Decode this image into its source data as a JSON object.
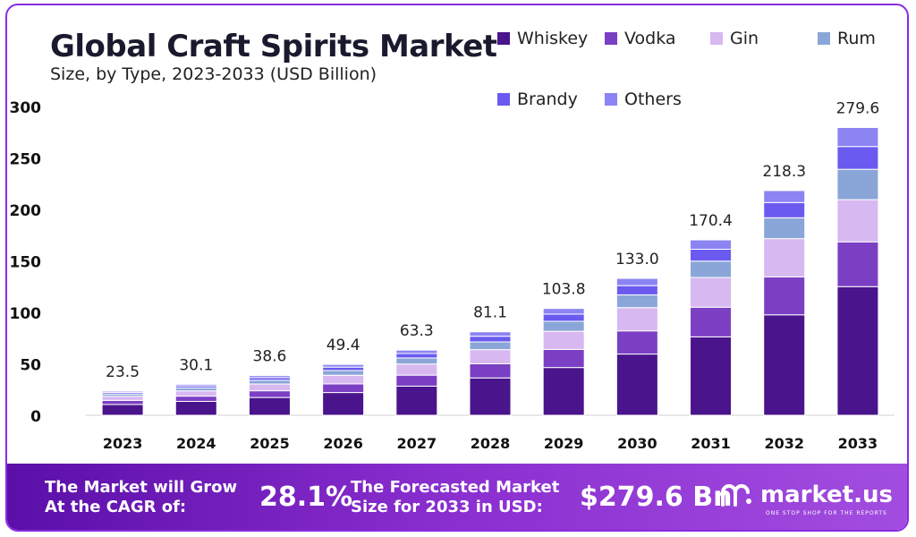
{
  "title": "Global Craft Spirits Market",
  "subtitle": "Size, by Type, 2023-2033 (USD Billion)",
  "colors": {
    "Whiskey": "#4a148c",
    "Vodka": "#7b3fc4",
    "Gin": "#d7b8f0",
    "Rum": "#8aa6d8",
    "Brandy": "#6a5af0",
    "Others": "#8c84f2"
  },
  "chart_data": {
    "type": "bar",
    "stacked": true,
    "categories": [
      "2023",
      "2024",
      "2025",
      "2026",
      "2027",
      "2028",
      "2029",
      "2030",
      "2031",
      "2032",
      "2033"
    ],
    "totals": [
      "23.5",
      "30.1",
      "38.6",
      "49.4",
      "63.3",
      "81.1",
      "103.8",
      "133.0",
      "170.4",
      "218.3",
      "279.6"
    ],
    "series": [
      {
        "name": "Whiskey",
        "values": [
          10.5,
          13.5,
          17.3,
          22.1,
          28.3,
          36.3,
          46.4,
          59.5,
          76.2,
          97.6,
          125.0
        ]
      },
      {
        "name": "Vodka",
        "values": [
          4.0,
          5.1,
          6.5,
          8.4,
          10.7,
          13.7,
          17.6,
          22.5,
          28.8,
          36.9,
          43.5
        ]
      },
      {
        "name": "Gin",
        "values": [
          4.0,
          5.1,
          6.6,
          8.4,
          10.8,
          13.8,
          17.6,
          22.6,
          28.9,
          37.1,
          41.0
        ]
      },
      {
        "name": "Rum",
        "values": [
          2.2,
          2.8,
          3.6,
          4.6,
          5.9,
          7.5,
          9.7,
          12.4,
          15.9,
          20.3,
          29.5
        ]
      },
      {
        "name": "Brandy",
        "values": [
          1.6,
          2.0,
          2.6,
          3.3,
          4.3,
          5.5,
          7.0,
          9.0,
          11.5,
          14.8,
          22.1
        ]
      },
      {
        "name": "Others",
        "values": [
          1.2,
          1.6,
          2.0,
          2.6,
          3.3,
          4.3,
          5.5,
          7.0,
          9.1,
          11.6,
          18.5
        ]
      }
    ],
    "yticks": [
      "0",
      "50",
      "100",
      "150",
      "200",
      "250",
      "300"
    ],
    "ylim": [
      0,
      300
    ],
    "legend": "top-right"
  },
  "footer": {
    "cagr_label_1": "The Market will Grow",
    "cagr_label_2": "At the CAGR of:",
    "cagr_value": "28.1%",
    "forecast_label_1": "The Forecasted Market",
    "forecast_label_2": "Size for 2033 in USD:",
    "forecast_value": "$279.6 Bn",
    "brand": "market.us",
    "tagline": "ONE STOP SHOP FOR THE REPORTS"
  }
}
